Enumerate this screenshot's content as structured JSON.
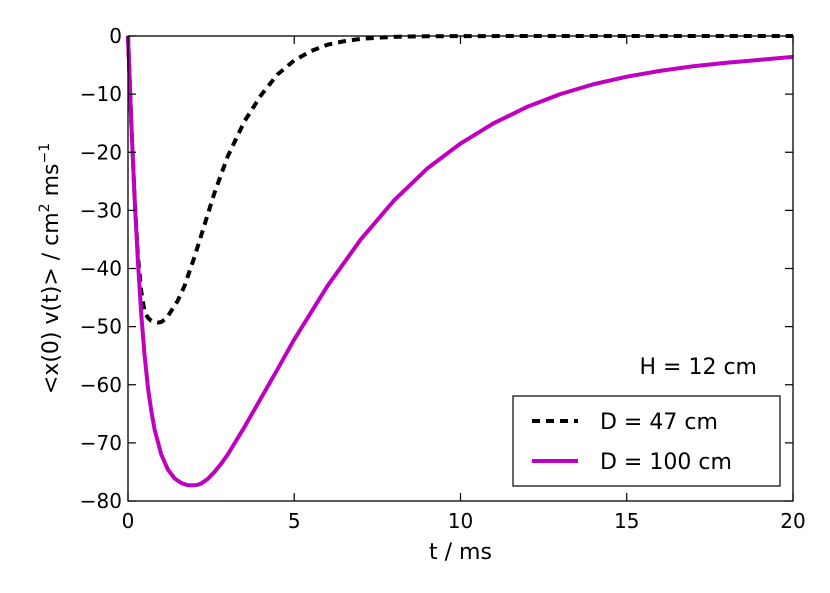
{
  "chart_data": {
    "type": "line",
    "xlabel": "t / ms",
    "ylabel": "<x(0) v(t)> / cm",
    "ylabel_sup1": "2",
    "ylabel_mid": " ms",
    "ylabel_sup2": "−1",
    "xlim": [
      0,
      20
    ],
    "ylim": [
      -80,
      0
    ],
    "xticks": [
      0,
      5,
      10,
      15,
      20
    ],
    "yticks": [
      0,
      -10,
      -20,
      -30,
      -40,
      -50,
      -60,
      -70,
      -80
    ],
    "xtick_labels": [
      "0",
      "5",
      "10",
      "15",
      "20"
    ],
    "ytick_labels": [
      "0",
      "−10",
      "−20",
      "−30",
      "−40",
      "−50",
      "−60",
      "−70",
      "−80"
    ],
    "grid": false,
    "legend_position": "bottom-right",
    "annotation": "H = 12 cm",
    "series": [
      {
        "name": "D = 47 cm",
        "color": "#000000",
        "style": "dashed",
        "x": [
          0,
          0.1,
          0.2,
          0.3,
          0.4,
          0.5,
          0.6,
          0.7,
          0.8,
          0.9,
          1.0,
          1.1,
          1.2,
          1.3,
          1.5,
          1.7,
          2.0,
          2.3,
          2.6,
          3.0,
          3.5,
          4.0,
          4.5,
          5.0,
          5.5,
          6.0,
          6.5,
          7.0,
          7.5,
          8.0,
          8.5,
          9,
          10,
          12,
          15,
          20
        ],
        "y": [
          0,
          -15,
          -28,
          -38,
          -44,
          -47.5,
          -48.5,
          -49,
          -49.2,
          -49.3,
          -49.2,
          -48.8,
          -48.2,
          -47.3,
          -45.5,
          -43,
          -38,
          -32.5,
          -27,
          -20.7,
          -14.7,
          -10.2,
          -6.6,
          -4.2,
          -2.6,
          -1.5,
          -0.9,
          -0.5,
          -0.3,
          -0.15,
          -0.08,
          -0.05,
          -0.02,
          0,
          0,
          0
        ]
      },
      {
        "name": "D = 100 cm",
        "color": "#bf00bf",
        "style": "solid",
        "x": [
          0,
          0.1,
          0.2,
          0.3,
          0.4,
          0.5,
          0.6,
          0.7,
          0.8,
          1.0,
          1.2,
          1.4,
          1.6,
          1.8,
          2.0,
          2.1,
          2.2,
          2.4,
          2.6,
          2.8,
          3.0,
          3.5,
          4.0,
          4.5,
          5.0,
          6.0,
          7.0,
          8.0,
          9.0,
          10.0,
          11.0,
          12.0,
          13.0,
          14.0,
          15.0,
          16.0,
          17.0,
          18.0,
          19.0,
          20.0
        ],
        "y": [
          0,
          -15,
          -28,
          -39,
          -48,
          -55,
          -60.5,
          -64.5,
          -67.7,
          -72.0,
          -74.6,
          -76.1,
          -76.9,
          -77.3,
          -77.3,
          -77.2,
          -77.0,
          -76.2,
          -75.0,
          -73.6,
          -72.0,
          -67.3,
          -62.3,
          -57.3,
          -52.2,
          -43.0,
          -35.0,
          -28.3,
          -22.8,
          -18.5,
          -15.0,
          -12.2,
          -10.0,
          -8.3,
          -7.0,
          -6.0,
          -5.2,
          -4.6,
          -4.1,
          -3.6
        ]
      }
    ]
  }
}
